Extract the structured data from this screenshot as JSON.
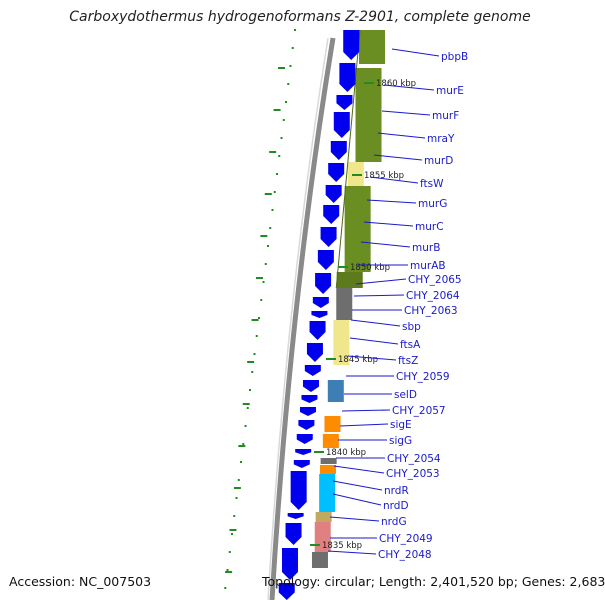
{
  "title": "Carboxydothermus hydrogenoformans Z-2901, complete genome",
  "accession": "Accession: NC_007503",
  "topology": "Topology: circular; Length: 2,401,520 bp; Genes: 2,683",
  "kbp_labels": [
    "1860 kbp",
    "1855 kbp",
    "1850 kbp",
    "1845 kbp",
    "1840 kbp",
    "1835 kbp"
  ],
  "genes": [
    "pbpB",
    "murE",
    "murF",
    "mraY",
    "murD",
    "ftsW",
    "murG",
    "murC",
    "murB",
    "murAB",
    "CHY_2065",
    "CHY_2064",
    "CHY_2063",
    "sbp",
    "ftsA",
    "ftsZ",
    "CHY_2059",
    "selD",
    "CHY_2057",
    "sigE",
    "sigG",
    "CHY_2054",
    "CHY_2053",
    "nrdR",
    "nrdD",
    "nrdG",
    "CHY_2049",
    "CHY_2048"
  ],
  "colors": {
    "backbone": "#8a8a8a",
    "gene_arrow": "#0000ee",
    "olive": "#6b8e23",
    "khaki": "#f0e68c",
    "gray_block": "#6e6e6e",
    "steelblue": "#3d7fb5",
    "orange": "#ff8c00",
    "cyan": "#00bfff",
    "pink": "#e08080",
    "tan": "#c2a860",
    "ticks": "#228b22",
    "label_lines": "#1a1acc"
  }
}
